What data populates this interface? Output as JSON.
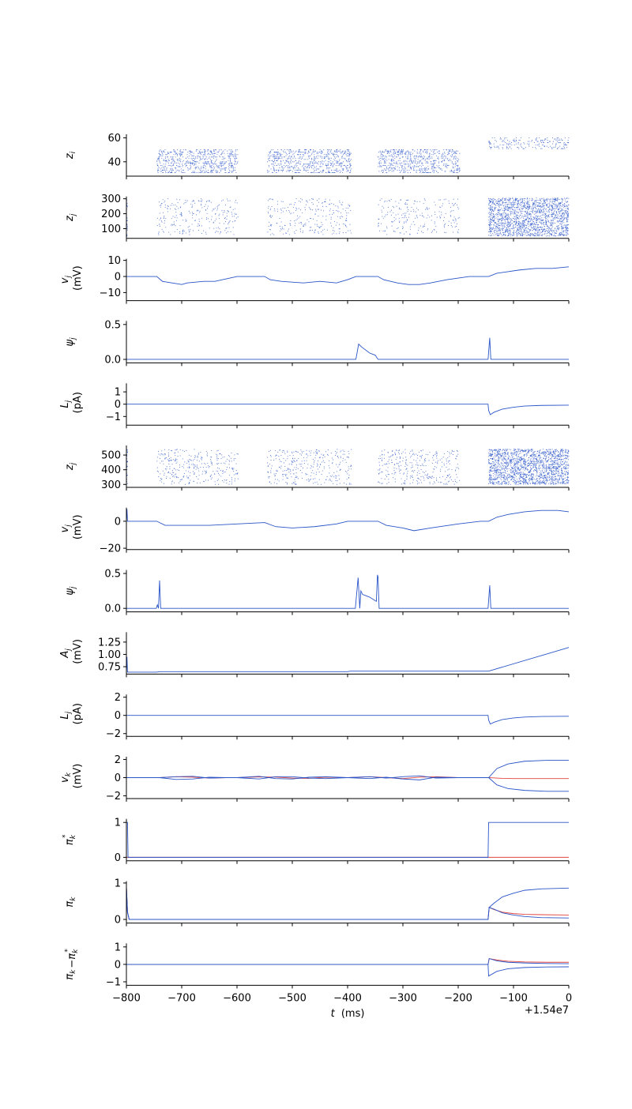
{
  "figure": {
    "xaxis": {
      "label_var": "t",
      "label_unit": "(ms)",
      "offset_text": "+1.54e7",
      "xlim": [
        -800,
        0
      ],
      "ticks": [
        -800,
        -700,
        -600,
        -500,
        -400,
        -300,
        -200,
        -100,
        0
      ],
      "tick_labels": [
        "−800",
        "−700",
        "−600",
        "−500",
        "−400",
        "−300",
        "−200",
        "−100",
        "0"
      ]
    },
    "colors": {
      "primary": "#2a55c8",
      "secondary": "#e0443e",
      "axis": "#000000"
    }
  },
  "chart_data": [
    {
      "type": "scatter",
      "id": "z_i_raster",
      "ylabel": [
        {
          "sym": "z",
          "sub": "i"
        }
      ],
      "ylim": [
        28,
        63
      ],
      "yticks": [
        40,
        60
      ],
      "ytick_labels": [
        "40",
        "60"
      ],
      "grid": false,
      "raster_blocks": [
        {
          "t0": -745,
          "t1": -598,
          "y0": 31,
          "y1": 50,
          "n": 650
        },
        {
          "t0": -545,
          "t1": -393,
          "y0": 31,
          "y1": 50,
          "n": 650
        },
        {
          "t0": -345,
          "t1": -197,
          "y0": 31,
          "y1": 50,
          "n": 650
        },
        {
          "t0": -145,
          "t1": 0,
          "y0": 51,
          "y1": 60,
          "n": 200
        }
      ]
    },
    {
      "type": "scatter",
      "id": "z_j_raster_1",
      "ylabel": [
        {
          "sym": "z",
          "sub": "j"
        }
      ],
      "ylim": [
        35,
        315
      ],
      "yticks": [
        100,
        200,
        300
      ],
      "ytick_labels": [
        "100",
        "200",
        "300"
      ],
      "grid": false,
      "raster_blocks": [
        {
          "t0": -800,
          "t1": -798,
          "y0": 45,
          "y1": 305,
          "n": 30
        },
        {
          "t0": -745,
          "t1": -598,
          "y0": 60,
          "y1": 300,
          "n": 260
        },
        {
          "t0": -545,
          "t1": -393,
          "y0": 60,
          "y1": 300,
          "n": 260
        },
        {
          "t0": -345,
          "t1": -197,
          "y0": 60,
          "y1": 300,
          "n": 230
        },
        {
          "t0": -145,
          "t1": 0,
          "y0": 50,
          "y1": 305,
          "n": 1800
        }
      ]
    },
    {
      "type": "line",
      "id": "v_j_1",
      "ylabel": [
        {
          "sym": "v",
          "sub": "j"
        },
        {
          "text": "(mV)"
        }
      ],
      "ylim": [
        -15,
        11
      ],
      "yticks": [
        -10,
        0,
        10
      ],
      "ytick_labels": [
        "−10",
        "0",
        "10"
      ],
      "grid": false,
      "series": [
        {
          "color": "#2a55c8",
          "x": [
            -800,
            -745,
            -735,
            -700,
            -690,
            -660,
            -640,
            -600,
            -550,
            -540,
            -520,
            -480,
            -450,
            -420,
            -400,
            -385,
            -345,
            -335,
            -310,
            -290,
            -270,
            -250,
            -220,
            -200,
            -180,
            -160,
            -145,
            -130,
            -110,
            -90,
            -60,
            -30,
            0
          ],
          "y": [
            0,
            0,
            -3,
            -5,
            -4,
            -3,
            -3,
            0,
            0,
            -2,
            -3,
            -4,
            -3,
            -4,
            -2,
            0,
            0,
            -2,
            -4,
            -5,
            -5,
            -4,
            -2,
            -1,
            0,
            0,
            0,
            2,
            3,
            4,
            5,
            5,
            6
          ]
        }
      ]
    },
    {
      "type": "line",
      "id": "psi_j_1",
      "ylabel": [
        {
          "sym": "ψ",
          "sub": "j"
        }
      ],
      "ylim": [
        -0.05,
        0.55
      ],
      "yticks": [
        0.0,
        0.5
      ],
      "ytick_labels": [
        "0.0",
        "0.5"
      ],
      "grid": false,
      "series": [
        {
          "color": "#2a55c8",
          "x": [
            -800,
            -385,
            -380,
            -375,
            -360,
            -350,
            -345,
            -344,
            -146,
            -143,
            -141,
            -138,
            0
          ],
          "y": [
            0,
            0,
            0.22,
            0.18,
            0.09,
            0.06,
            0,
            0,
            0,
            0.31,
            0,
            0,
            0
          ]
        }
      ]
    },
    {
      "type": "line",
      "id": "L_j_1",
      "ylabel": [
        {
          "sym": "L",
          "sub": "j"
        },
        {
          "text": "(pA)"
        }
      ],
      "ylim": [
        -1.7,
        1.7
      ],
      "yticks": [
        -1,
        0,
        1
      ],
      "ytick_labels": [
        "−1",
        "0",
        "1"
      ],
      "grid": false,
      "series": [
        {
          "color": "#2a55c8",
          "x": [
            -800,
            -146,
            -145,
            -142,
            -135,
            -120,
            -100,
            -80,
            -50,
            0
          ],
          "y": [
            0,
            0,
            -0.5,
            -0.85,
            -0.65,
            -0.4,
            -0.25,
            -0.15,
            -0.1,
            -0.08
          ]
        }
      ]
    },
    {
      "type": "scatter",
      "id": "z_j_raster_2",
      "ylabel": [
        {
          "sym": "z",
          "sub": "j"
        }
      ],
      "ylim": [
        280,
        565
      ],
      "yticks": [
        300,
        400,
        500
      ],
      "ytick_labels": [
        "300",
        "400",
        "500"
      ],
      "grid": false,
      "raster_blocks": [
        {
          "t0": -800,
          "t1": -798,
          "y0": 305,
          "y1": 560,
          "n": 30
        },
        {
          "t0": -745,
          "t1": -598,
          "y0": 300,
          "y1": 540,
          "n": 330
        },
        {
          "t0": -545,
          "t1": -393,
          "y0": 300,
          "y1": 540,
          "n": 330
        },
        {
          "t0": -345,
          "t1": -197,
          "y0": 300,
          "y1": 540,
          "n": 330
        },
        {
          "t0": -145,
          "t1": 0,
          "y0": 300,
          "y1": 540,
          "n": 1800
        }
      ]
    },
    {
      "type": "line",
      "id": "v_j_2",
      "ylabel": [
        {
          "sym": "v",
          "sub": "j"
        },
        {
          "text": "(mV)"
        }
      ],
      "ylim": [
        -21,
        10
      ],
      "yticks": [
        -20,
        0
      ],
      "ytick_labels": [
        "−20",
        "0"
      ],
      "grid": false,
      "series": [
        {
          "color": "#2a55c8",
          "x": [
            -800,
            -799,
            -798,
            -745,
            -730,
            -700,
            -650,
            -600,
            -550,
            -530,
            -500,
            -460,
            -420,
            -400,
            -345,
            -330,
            -300,
            -280,
            -250,
            -200,
            -160,
            -145,
            -130,
            -110,
            -80,
            -50,
            -20,
            0
          ],
          "y": [
            0,
            9,
            0,
            0,
            -3,
            -3,
            -3,
            -2,
            -1,
            -4,
            -5,
            -4,
            -2,
            0,
            0,
            -3,
            -5,
            -7,
            -5,
            -2,
            0,
            0,
            3,
            5,
            7,
            8,
            8,
            7
          ]
        }
      ]
    },
    {
      "type": "line",
      "id": "psi_j_2",
      "ylabel": [
        {
          "sym": "ψ",
          "sub": "j"
        }
      ],
      "ylim": [
        -0.05,
        0.55
      ],
      "yticks": [
        0.0,
        0.5
      ],
      "ytick_labels": [
        "0.0",
        "0.5"
      ],
      "grid": false,
      "series": [
        {
          "color": "#2a55c8",
          "x": [
            -800,
            -746,
            -744,
            -742,
            -740,
            -738,
            -736,
            -734,
            -386,
            -381,
            -378,
            -376,
            -373,
            -360,
            -348,
            -346,
            -345,
            -343,
            -341,
            -339,
            -146,
            -143,
            -141,
            -138,
            0
          ],
          "y": [
            0,
            0,
            0.05,
            0,
            0.4,
            0,
            0,
            0,
            0,
            0.44,
            0,
            0.25,
            0.2,
            0.16,
            0.1,
            0.48,
            0.45,
            0,
            0,
            0,
            0,
            0.33,
            0,
            0,
            0
          ]
        }
      ]
    },
    {
      "type": "line",
      "id": "A_j",
      "ylabel": [
        {
          "sym": "A",
          "sub": "j"
        },
        {
          "text": "(mV)"
        }
      ],
      "ylim": [
        0.6,
        1.45
      ],
      "yticks": [
        0.75,
        1.0,
        1.25
      ],
      "ytick_labels": [
        "0.75",
        "1.00",
        "1.25"
      ],
      "grid": false,
      "series": [
        {
          "color": "#2a55c8",
          "x": [
            -800,
            -799,
            -798,
            -745,
            -740,
            -400,
            -395,
            -150,
            -145,
            0
          ],
          "y": [
            0.64,
            0.95,
            0.64,
            0.64,
            0.65,
            0.65,
            0.66,
            0.66,
            0.66,
            1.14
          ]
        }
      ]
    },
    {
      "type": "line",
      "id": "L_j_2",
      "ylabel": [
        {
          "sym": "L",
          "sub": "j"
        },
        {
          "text": "(pA)"
        }
      ],
      "ylim": [
        -2.3,
        2.3
      ],
      "yticks": [
        -2,
        0,
        2
      ],
      "ytick_labels": [
        "−2",
        "0",
        "2"
      ],
      "grid": false,
      "series": [
        {
          "color": "#2a55c8",
          "x": [
            -800,
            -146,
            -145,
            -142,
            -135,
            -120,
            -100,
            -80,
            -50,
            0
          ],
          "y": [
            0,
            0,
            -0.5,
            -0.95,
            -0.75,
            -0.45,
            -0.28,
            -0.18,
            -0.12,
            -0.1
          ]
        }
      ]
    },
    {
      "type": "line",
      "id": "v_k",
      "ylabel": [
        {
          "sym": "v",
          "sub": "k"
        },
        {
          "text": "(mV)"
        }
      ],
      "ylim": [
        -2.3,
        2.3
      ],
      "yticks": [
        -2,
        0,
        2
      ],
      "ytick_labels": [
        "−2",
        "0",
        "2"
      ],
      "grid": false,
      "series": [
        {
          "color": "#e0443e",
          "x": [
            -800,
            -740,
            -710,
            -680,
            -650,
            -620,
            -600,
            -560,
            -530,
            -500,
            -470,
            -440,
            -400,
            -360,
            -330,
            -300,
            -270,
            -240,
            -200,
            -145,
            -140,
            -120,
            -100,
            -60,
            -20,
            0
          ],
          "y": [
            0,
            0,
            0.1,
            0.05,
            -0.05,
            0,
            0,
            0.08,
            0.06,
            -0.05,
            -0.08,
            0.05,
            0,
            0.1,
            0,
            -0.1,
            0.05,
            0.1,
            0,
            0,
            -0.02,
            -0.08,
            -0.1,
            -0.1,
            -0.1,
            -0.1
          ]
        },
        {
          "color": "#2a55c8",
          "x": [
            -800,
            -740,
            -710,
            -680,
            -650,
            -620,
            -600,
            -560,
            -530,
            -500,
            -470,
            -440,
            -400,
            -360,
            -330,
            -300,
            -270,
            -240,
            -200,
            -145,
            -130,
            -110,
            -80,
            -40,
            0
          ],
          "y": [
            0,
            0,
            -0.2,
            -0.15,
            0.05,
            0,
            0,
            0.15,
            -0.1,
            -0.15,
            0.05,
            0.1,
            0,
            -0.1,
            0.05,
            -0.15,
            -0.25,
            0.05,
            0,
            0,
            1.0,
            1.5,
            1.8,
            1.9,
            1.9
          ]
        },
        {
          "color": "#2a55c8",
          "x": [
            -800,
            -740,
            -710,
            -680,
            -650,
            -620,
            -600,
            -560,
            -530,
            -500,
            -470,
            -440,
            -400,
            -360,
            -330,
            -300,
            -270,
            -240,
            -200,
            -145,
            -130,
            -110,
            -80,
            -40,
            0
          ],
          "y": [
            0,
            0,
            0.1,
            0.15,
            -0.05,
            0,
            0,
            -0.15,
            0.1,
            0.1,
            -0.05,
            -0.1,
            0,
            0.1,
            -0.05,
            0.1,
            0.2,
            -0.05,
            0,
            0,
            -0.8,
            -1.2,
            -1.4,
            -1.5,
            -1.5
          ]
        }
      ]
    },
    {
      "type": "line",
      "id": "pi_star_k",
      "ylabel": [
        {
          "sym": "π",
          "sub": "k",
          "sup": "*"
        }
      ],
      "ylim": [
        -0.1,
        1.1
      ],
      "yticks": [
        0,
        1
      ],
      "ytick_labels": [
        "0",
        "1"
      ],
      "grid": false,
      "series": [
        {
          "color": "#e0443e",
          "x": [
            -800,
            0
          ],
          "y": [
            0,
            0
          ]
        },
        {
          "color": "#2a55c8",
          "x": [
            -800,
            -798,
            -797,
            -146,
            -145,
            0
          ],
          "y": [
            1,
            1,
            0,
            0,
            1,
            1
          ]
        }
      ]
    },
    {
      "type": "line",
      "id": "pi_k",
      "ylabel": [
        {
          "sym": "π",
          "sub": "k"
        }
      ],
      "ylim": [
        -0.1,
        1.05
      ],
      "yticks": [
        0,
        1
      ],
      "ytick_labels": [
        "0",
        "1"
      ],
      "grid": false,
      "series": [
        {
          "color": "#e0443e",
          "x": [
            -800,
            -798,
            -795,
            -146,
            -144,
            -135,
            -120,
            -100,
            -80,
            -50,
            0
          ],
          "y": [
            0.9,
            0.2,
            0,
            0,
            0.33,
            0.27,
            0.2,
            0.16,
            0.14,
            0.13,
            0.12
          ]
        },
        {
          "color": "#2a55c8",
          "x": [
            -800,
            -798,
            -795,
            -146,
            -144,
            -135,
            -120,
            -100,
            -80,
            -50,
            0
          ],
          "y": [
            0.9,
            0.2,
            0,
            0,
            0.33,
            0.45,
            0.62,
            0.72,
            0.8,
            0.84,
            0.86
          ]
        },
        {
          "color": "#2a55c8",
          "x": [
            -800,
            -798,
            -795,
            -146,
            -144,
            -135,
            -120,
            -100,
            -80,
            -50,
            0
          ],
          "y": [
            0.9,
            0.2,
            0,
            0,
            0.33,
            0.28,
            0.18,
            0.12,
            0.08,
            0.05,
            0.04
          ]
        }
      ]
    },
    {
      "type": "line",
      "id": "pi_k_minus_pi_star",
      "ylabel": [
        {
          "sym": "π",
          "sub": "k"
        },
        {
          "text": "−"
        },
        {
          "sym": "π",
          "sub": "k",
          "sup": "*"
        }
      ],
      "ylim": [
        -1.2,
        1.2
      ],
      "yticks": [
        -1,
        0,
        1
      ],
      "ytick_labels": [
        "−1",
        "0",
        "1"
      ],
      "grid": false,
      "series": [
        {
          "color": "#e0443e",
          "x": [
            -800,
            -146,
            -144,
            -130,
            -110,
            -80,
            -40,
            0
          ],
          "y": [
            0,
            0,
            0.33,
            0.25,
            0.18,
            0.14,
            0.12,
            0.12
          ]
        },
        {
          "color": "#2a55c8",
          "x": [
            -800,
            -146,
            -144,
            -130,
            -110,
            -80,
            -40,
            0
          ],
          "y": [
            0,
            0,
            0.33,
            0.2,
            0.12,
            0.08,
            0.05,
            0.04
          ]
        },
        {
          "color": "#2a55c8",
          "x": [
            -800,
            -146,
            -145,
            -130,
            -110,
            -80,
            -40,
            0
          ],
          "y": [
            0,
            0,
            -0.67,
            -0.4,
            -0.25,
            -0.18,
            -0.15,
            -0.14
          ]
        }
      ]
    }
  ]
}
